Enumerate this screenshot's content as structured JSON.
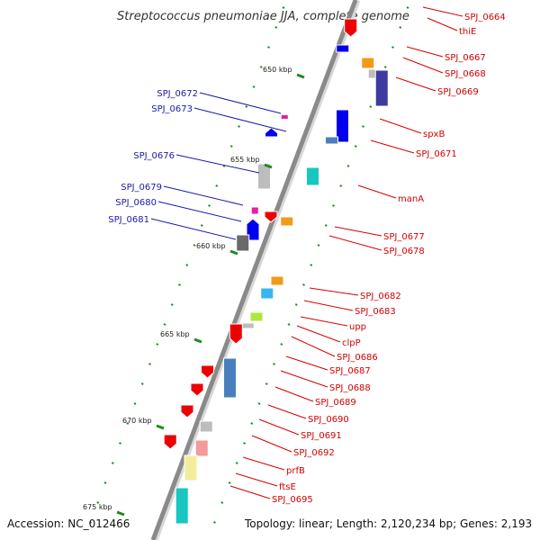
{
  "title": "Streptococcus pneumoniae JJA, complete genome",
  "footer": {
    "accession": "Accession: NC_012466",
    "summary": "Topology: linear; Length: 2,120,234 bp; Genes: 2,193"
  },
  "colors": {
    "red": "#ee0000",
    "blue": "#0000ee",
    "orange": "#f39a1b",
    "cyan": "#25c9d6",
    "skyblue": "#35b6f2",
    "teal": "#18c6c2",
    "steelblue": "#4a7fbf",
    "indigo": "#3d3aa0",
    "gray": "#bdbdbd",
    "darkgray": "#6a6a6a",
    "pink": "#ee1b9c",
    "salmon": "#f39a9a",
    "khaki": "#f3ec9a",
    "lime": "#aee83f",
    "backbone": "#8a8a8a",
    "tick": "#1e8a1e",
    "label_red": "#d40000",
    "label_blue": "#1a1aa8"
  },
  "scale": {
    "labels": [
      "650 kbp",
      "655 kbp",
      "660 kbp",
      "665 kbp",
      "670 kbp",
      "675 kbp"
    ]
  },
  "genes": [
    {
      "label": "SPJ_0664",
      "strand": "+",
      "color": "red"
    },
    {
      "label": "thiE",
      "strand": "+",
      "color": "blue"
    },
    {
      "label": "SPJ_0667",
      "strand": "+",
      "color": "orange"
    },
    {
      "label": "SPJ_0668",
      "strand": "+",
      "color": "gray"
    },
    {
      "label": "SPJ_0669",
      "strand": "+",
      "color": "indigo"
    },
    {
      "label": "SPJ_0672",
      "strand": "-",
      "color": "pink"
    },
    {
      "label": "SPJ_0673",
      "strand": "-",
      "color": "blue"
    },
    {
      "label": "spxB",
      "strand": "+",
      "color": "blue"
    },
    {
      "label": "SPJ_0671",
      "strand": "+",
      "color": "steelblue"
    },
    {
      "label": "SPJ_0676",
      "strand": "-",
      "color": "gray"
    },
    {
      "label": "manA",
      "strand": "+",
      "color": "teal"
    },
    {
      "label": "SPJ_0679",
      "strand": "-",
      "color": "pink"
    },
    {
      "label": "SPJ_0680",
      "strand": "-",
      "color": "blue"
    },
    {
      "label": "SPJ_0681",
      "strand": "-",
      "color": "darkgray"
    },
    {
      "label": "SPJ_0677",
      "strand": "+",
      "color": "red"
    },
    {
      "label": "SPJ_0678",
      "strand": "+",
      "color": "orange"
    },
    {
      "label": "SPJ_0682",
      "strand": "+",
      "color": "orange"
    },
    {
      "label": "SPJ_0683",
      "strand": "+",
      "color": "skyblue"
    },
    {
      "label": "upp",
      "strand": "+",
      "color": "lime"
    },
    {
      "label": "clpP",
      "strand": "+",
      "color": "gray"
    },
    {
      "label": "SPJ_0686",
      "strand": "+",
      "color": "red"
    },
    {
      "label": "SPJ_0687",
      "strand": "+",
      "color": "steelblue"
    },
    {
      "label": "SPJ_0688",
      "strand": "+",
      "color": "red"
    },
    {
      "label": "SPJ_0689",
      "strand": "+",
      "color": "red"
    },
    {
      "label": "SPJ_0690",
      "strand": "+",
      "color": "red"
    },
    {
      "label": "SPJ_0691",
      "strand": "+",
      "color": "gray"
    },
    {
      "label": "SPJ_0692",
      "strand": "+",
      "color": "red"
    },
    {
      "label": "prfB",
      "strand": "+",
      "color": "salmon"
    },
    {
      "label": "ftsE",
      "strand": "+",
      "color": "khaki"
    },
    {
      "label": "SPJ_0695",
      "strand": "+",
      "color": "teal"
    }
  ]
}
